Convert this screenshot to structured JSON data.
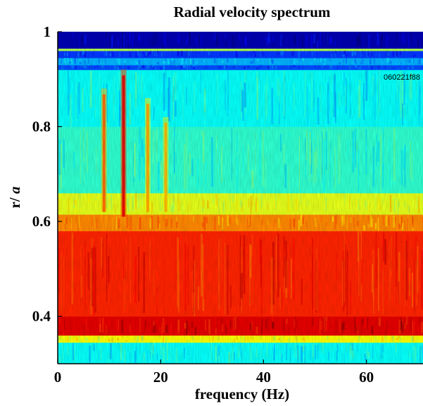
{
  "chart_data": {
    "type": "heatmap",
    "title": "Radial velocity spectrum",
    "xlabel": "frequency (Hz)",
    "ylabel_main": "r/ ",
    "ylabel_italic": "a",
    "annotation": "060221f88",
    "xlim": [
      0,
      71
    ],
    "ylim": [
      0.3,
      1.0
    ],
    "xticks": [
      0,
      20,
      40,
      60
    ],
    "yticks": [
      0.4,
      0.6,
      0.8,
      1.0
    ],
    "xtick_labels": [
      "0",
      "20",
      "40",
      "60"
    ],
    "ytick_labels": [
      "0.4",
      "0.6",
      "0.8",
      "1"
    ],
    "colormap": "jet",
    "colorscale_stops": [
      "#00007f",
      "#0000ff",
      "#007fff",
      "#00ffff",
      "#7fff7f",
      "#ffff00",
      "#ff7f00",
      "#ff0000",
      "#7f0000"
    ],
    "radial_bands": [
      {
        "r_from": 0.3,
        "r_to": 0.345,
        "level": 0.38
      },
      {
        "r_from": 0.345,
        "r_to": 0.36,
        "level": 0.62
      },
      {
        "r_from": 0.36,
        "r_to": 0.4,
        "level": 0.9
      },
      {
        "r_from": 0.4,
        "r_to": 0.58,
        "level": 0.84
      },
      {
        "r_from": 0.58,
        "r_to": 0.615,
        "level": 0.74
      },
      {
        "r_from": 0.615,
        "r_to": 0.66,
        "level": 0.6
      },
      {
        "r_from": 0.66,
        "r_to": 0.8,
        "level": 0.42
      },
      {
        "r_from": 0.8,
        "r_to": 0.92,
        "level": 0.38
      },
      {
        "r_from": 0.92,
        "r_to": 0.93,
        "level": 0.2
      },
      {
        "r_from": 0.93,
        "r_to": 0.945,
        "level": 0.3
      },
      {
        "r_from": 0.945,
        "r_to": 0.96,
        "level": 0.18
      },
      {
        "r_from": 0.96,
        "r_to": 0.965,
        "level": 0.55
      },
      {
        "r_from": 0.965,
        "r_to": 1.0,
        "level": 0.05
      }
    ],
    "coherent_modes": [
      {
        "f": 9.0,
        "r_from": 0.62,
        "r_to": 0.88,
        "level": 0.78
      },
      {
        "f": 12.8,
        "r_from": 0.61,
        "r_to": 0.92,
        "level": 0.9
      },
      {
        "f": 17.5,
        "r_from": 0.62,
        "r_to": 0.86,
        "level": 0.72
      },
      {
        "f": 21.0,
        "r_from": 0.62,
        "r_to": 0.82,
        "level": 0.7
      }
    ]
  }
}
